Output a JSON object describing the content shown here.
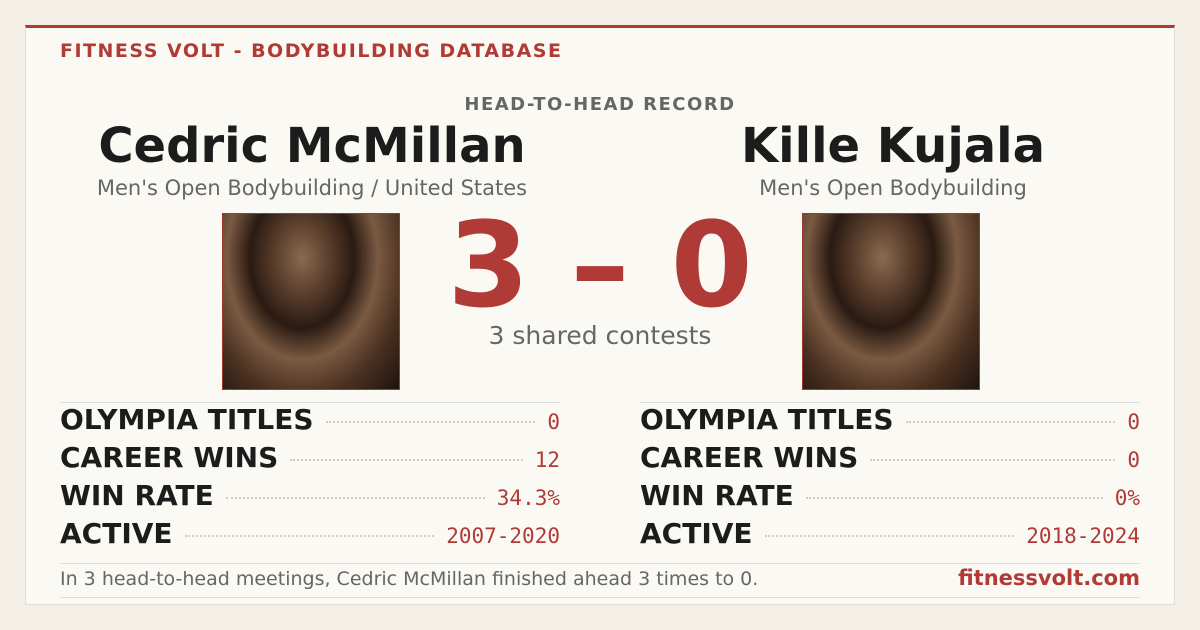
{
  "header": {
    "brand": "FITNESS VOLT - BODYBUILDING DATABASE"
  },
  "matchup": {
    "label": "HEAD-TO-HEAD RECORD",
    "score": "3 – 0",
    "shared": "3 shared contests"
  },
  "athletes": [
    {
      "name": "Cedric McMillan",
      "division": "Men's Open Bodybuilding / United States",
      "stats": [
        {
          "label": "OLYMPIA TITLES",
          "value": "0"
        },
        {
          "label": "CAREER WINS",
          "value": "12"
        },
        {
          "label": "WIN RATE",
          "value": "34.3%"
        },
        {
          "label": "ACTIVE",
          "value": "2007-2020"
        }
      ]
    },
    {
      "name": "Kille Kujala",
      "division": "Men's Open Bodybuilding",
      "stats": [
        {
          "label": "OLYMPIA TITLES",
          "value": "0"
        },
        {
          "label": "CAREER WINS",
          "value": "0"
        },
        {
          "label": "WIN RATE",
          "value": "0%"
        },
        {
          "label": "ACTIVE",
          "value": "2018-2024"
        }
      ]
    }
  ],
  "footer": {
    "summary": "In 3 head-to-head meetings, Cedric McMillan finished ahead 3 times to 0.",
    "site": "fitnessvolt.com"
  }
}
